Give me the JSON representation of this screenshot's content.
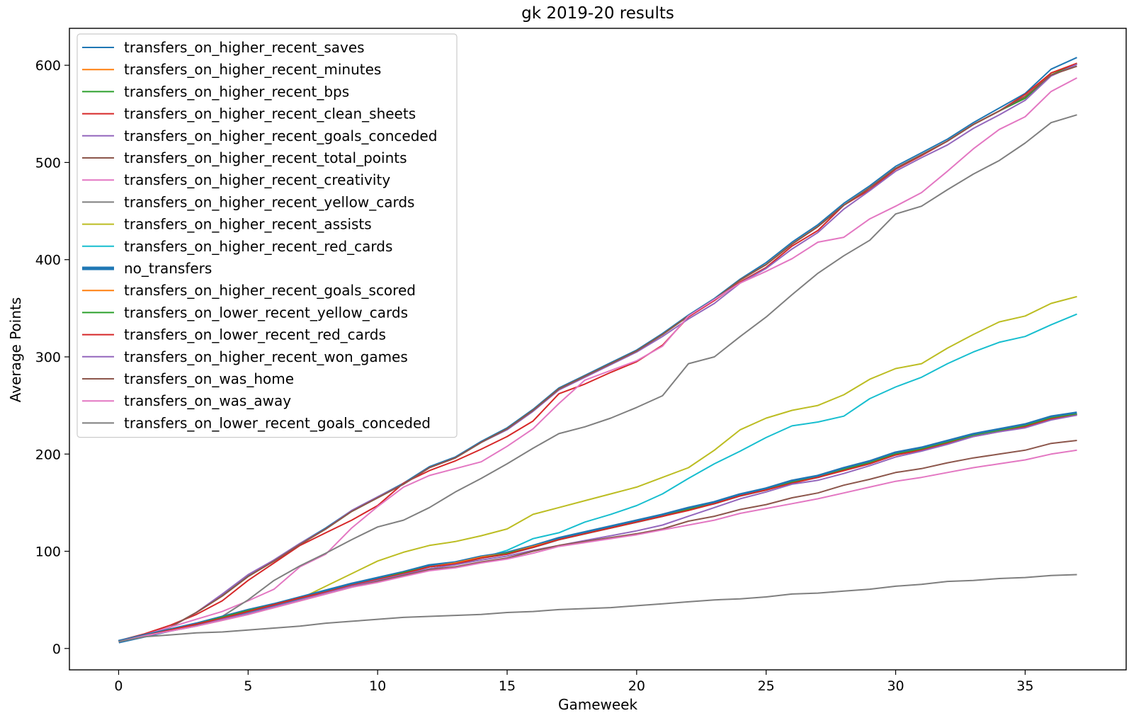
{
  "chart_data": {
    "type": "line",
    "title": "gk 2019-20 results",
    "xlabel": "Gameweek",
    "ylabel": "Average Points",
    "xlim": [
      -1.9,
      38.9
    ],
    "ylim": [
      -22,
      638
    ],
    "xticks": [
      0,
      5,
      10,
      15,
      20,
      25,
      30,
      35
    ],
    "yticks": [
      0,
      100,
      200,
      300,
      400,
      500,
      600
    ],
    "legend_position": "top-left",
    "grid": false,
    "series": [
      {
        "name": "transfers_on_higher_recent_saves",
        "color": "#1f77b4",
        "values": [
          8,
          14,
          22,
          37,
          55,
          75,
          91,
          108,
          124,
          142,
          156,
          170,
          187,
          197,
          213,
          227,
          246,
          268,
          281,
          294,
          307,
          324,
          343,
          360,
          380,
          397,
          418,
          436,
          458,
          476,
          496,
          510,
          524,
          541,
          556,
          571,
          596,
          608
        ]
      },
      {
        "name": "transfers_on_higher_recent_minutes",
        "color": "#ff7f0e",
        "values": [
          8,
          14,
          22,
          37,
          54,
          74,
          90,
          107,
          123,
          141,
          155,
          169,
          186,
          196,
          212,
          226,
          245,
          267,
          280,
          293,
          306,
          323,
          342,
          359,
          379,
          395,
          416,
          434,
          456,
          474,
          494,
          508,
          522,
          539,
          553,
          567,
          592,
          602
        ]
      },
      {
        "name": "transfers_on_higher_recent_bps",
        "color": "#2ca02c",
        "values": [
          8,
          14,
          22,
          37,
          54,
          74,
          90,
          107,
          123,
          141,
          155,
          169,
          186,
          196,
          212,
          226,
          245,
          267,
          280,
          293,
          306,
          323,
          342,
          359,
          379,
          395,
          416,
          434,
          456,
          474,
          494,
          508,
          522,
          539,
          553,
          566,
          590,
          602
        ]
      },
      {
        "name": "transfers_on_higher_recent_clean_sheets",
        "color": "#d62728",
        "values": [
          8,
          15,
          24,
          35,
          49,
          70,
          88,
          106,
          119,
          132,
          147,
          170,
          183,
          193,
          205,
          218,
          234,
          262,
          272,
          284,
          295,
          312,
          341,
          358,
          377,
          392,
          414,
          430,
          456,
          472,
          493,
          507,
          522,
          539,
          553,
          570,
          592,
          602
        ]
      },
      {
        "name": "transfers_on_higher_recent_goals_conceded",
        "color": "#9467bd",
        "values": [
          8,
          14,
          22,
          37,
          56,
          76,
          91,
          108,
          123,
          142,
          156,
          169,
          186,
          196,
          212,
          225,
          244,
          266,
          279,
          292,
          305,
          321,
          339,
          355,
          376,
          391,
          411,
          428,
          452,
          471,
          491,
          505,
          518,
          535,
          549,
          564,
          589,
          601
        ]
      },
      {
        "name": "transfers_on_higher_recent_total_points",
        "color": "#8c564b",
        "values": [
          8,
          14,
          22,
          37,
          54,
          74,
          90,
          107,
          123,
          141,
          155,
          169,
          186,
          196,
          212,
          226,
          245,
          267,
          280,
          293,
          306,
          323,
          342,
          359,
          379,
          395,
          416,
          434,
          456,
          474,
          494,
          508,
          522,
          539,
          553,
          568,
          590,
          599
        ]
      },
      {
        "name": "transfers_on_higher_recent_creativity",
        "color": "#e377c2",
        "values": [
          8,
          14,
          22,
          30,
          38,
          49,
          61,
          84,
          97,
          124,
          146,
          166,
          178,
          185,
          192,
          208,
          226,
          252,
          276,
          286,
          296,
          311,
          342,
          359,
          376,
          388,
          401,
          418,
          423,
          442,
          455,
          469,
          491,
          514,
          534,
          547,
          573,
          587
        ]
      },
      {
        "name": "transfers_on_higher_recent_yellow_cards",
        "color": "#7f7f7f",
        "values": [
          8,
          14,
          20,
          26,
          33,
          50,
          70,
          85,
          98,
          112,
          125,
          132,
          145,
          161,
          175,
          190,
          206,
          221,
          228,
          237,
          248,
          260,
          293,
          300,
          321,
          341,
          364,
          386,
          404,
          420,
          447,
          455,
          472,
          488,
          502,
          520,
          541,
          549
        ]
      },
      {
        "name": "transfers_on_higher_recent_assists",
        "color": "#bcbd22",
        "values": [
          8,
          14,
          19,
          25,
          31,
          37,
          44,
          51,
          64,
          77,
          90,
          99,
          106,
          110,
          116,
          123,
          138,
          145,
          152,
          159,
          166,
          176,
          186,
          204,
          225,
          237,
          245,
          250,
          261,
          277,
          288,
          293,
          309,
          323,
          336,
          342,
          355,
          362
        ]
      },
      {
        "name": "transfers_on_higher_recent_red_cards",
        "color": "#17becf",
        "values": [
          7,
          14,
          19,
          25,
          31,
          37,
          44,
          51,
          58,
          65,
          71,
          78,
          84,
          87,
          93,
          101,
          113,
          119,
          130,
          138,
          147,
          159,
          175,
          190,
          203,
          217,
          229,
          233,
          239,
          257,
          269,
          279,
          293,
          305,
          315,
          321,
          333,
          344
        ]
      },
      {
        "name": "no_transfers",
        "color": "#1f77b4",
        "width": 5,
        "values": [
          7,
          13,
          19,
          25,
          32,
          39,
          45,
          52,
          59,
          66,
          72,
          78,
          85,
          88,
          94,
          98,
          105,
          113,
          119,
          125,
          131,
          137,
          144,
          150,
          158,
          164,
          172,
          177,
          185,
          192,
          201,
          206,
          213,
          220,
          225,
          230,
          238,
          242
        ]
      },
      {
        "name": "transfers_on_higher_recent_goals_scored",
        "color": "#ff7f0e",
        "values": [
          7,
          13,
          19,
          25,
          32,
          39,
          45,
          52,
          58,
          65,
          71,
          78,
          84,
          88,
          94,
          98,
          105,
          112,
          118,
          124,
          130,
          136,
          143,
          149,
          157,
          163,
          171,
          176,
          184,
          191,
          200,
          205,
          212,
          219,
          224,
          229,
          237,
          241
        ]
      },
      {
        "name": "transfers_on_lower_recent_yellow_cards",
        "color": "#2ca02c",
        "values": [
          7,
          13,
          19,
          25,
          32,
          39,
          45,
          52,
          58,
          65,
          71,
          78,
          84,
          87,
          93,
          98,
          104,
          112,
          118,
          124,
          130,
          136,
          143,
          149,
          157,
          163,
          171,
          176,
          184,
          191,
          200,
          205,
          212,
          219,
          224,
          229,
          237,
          241
        ]
      },
      {
        "name": "transfers_on_lower_recent_red_cards",
        "color": "#d62728",
        "values": [
          7,
          13,
          19,
          25,
          31,
          38,
          45,
          52,
          58,
          65,
          71,
          77,
          84,
          87,
          93,
          97,
          104,
          112,
          118,
          124,
          130,
          136,
          142,
          149,
          157,
          163,
          170,
          176,
          183,
          190,
          199,
          204,
          211,
          218,
          223,
          228,
          236,
          240
        ]
      },
      {
        "name": "transfers_on_higher_recent_won_games",
        "color": "#9467bd",
        "values": [
          7,
          13,
          18,
          23,
          30,
          36,
          43,
          50,
          57,
          64,
          70,
          76,
          82,
          86,
          91,
          95,
          101,
          106,
          111,
          116,
          121,
          127,
          136,
          145,
          154,
          161,
          169,
          173,
          180,
          188,
          197,
          203,
          210,
          218,
          223,
          227,
          235,
          240
        ]
      },
      {
        "name": "transfers_on_was_home",
        "color": "#8c564b",
        "values": [
          7,
          13,
          18,
          23,
          29,
          35,
          42,
          49,
          56,
          63,
          69,
          75,
          81,
          84,
          89,
          93,
          100,
          106,
          110,
          114,
          118,
          123,
          131,
          136,
          143,
          148,
          155,
          160,
          168,
          174,
          181,
          185,
          191,
          196,
          200,
          204,
          211,
          214
        ]
      },
      {
        "name": "transfers_on_was_away",
        "color": "#e377c2",
        "values": [
          7,
          13,
          18,
          23,
          29,
          35,
          42,
          49,
          56,
          63,
          68,
          74,
          80,
          83,
          88,
          92,
          98,
          105,
          109,
          113,
          117,
          122,
          127,
          132,
          139,
          144,
          149,
          154,
          160,
          166,
          172,
          176,
          181,
          186,
          190,
          194,
          200,
          204
        ]
      },
      {
        "name": "transfers_on_lower_recent_goals_conceded",
        "color": "#7f7f7f",
        "values": [
          7,
          12,
          14,
          16,
          17,
          19,
          21,
          23,
          26,
          28,
          30,
          32,
          33,
          34,
          35,
          37,
          38,
          40,
          41,
          42,
          44,
          46,
          48,
          50,
          51,
          53,
          56,
          57,
          59,
          61,
          64,
          66,
          69,
          70,
          72,
          73,
          75,
          76
        ]
      }
    ]
  }
}
